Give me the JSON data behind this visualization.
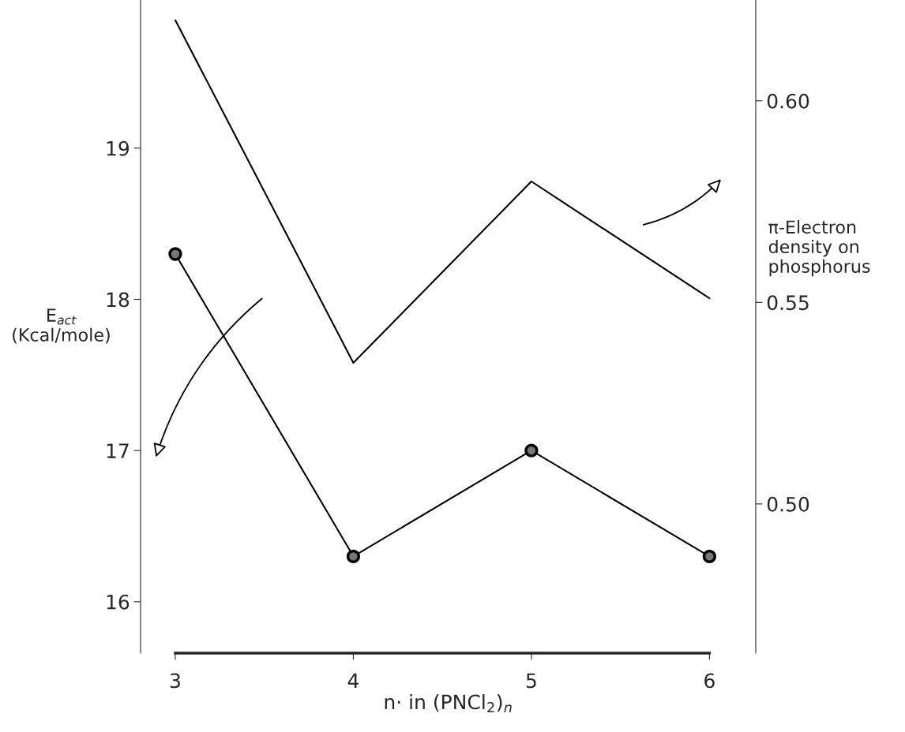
{
  "chart_data": {
    "type": "line",
    "categories": [
      "3",
      "4",
      "5",
      "6"
    ],
    "xlabel": "n· in (PNCl$_{2}$)$_{n}$",
    "ylabel": "E$_{act}$\n(Kcal/mole)",
    "y2label": "π-Electron\ndensity on\nphosphorus",
    "ylim": [
      15.66,
      19.98
    ],
    "yticks": [
      16,
      17,
      18,
      19
    ],
    "y2lim": [
      0.463,
      0.625
    ],
    "y2ticks": [
      {
        "value": 0.5,
        "label": "0.50"
      },
      {
        "value": 0.55,
        "label": "0.55"
      },
      {
        "value": 0.6,
        "label": "0.60"
      }
    ],
    "grid": false,
    "legend": false,
    "series": [
      {
        "color": "#000000",
        "marker": "circle",
        "values": [
          18.3,
          16.3,
          17.0,
          16.3
        ]
      },
      {
        "color": "#000000",
        "marker": "none",
        "axis": "y2",
        "values": [
          0.62,
          0.535,
          0.58,
          0.551
        ]
      }
    ]
  }
}
